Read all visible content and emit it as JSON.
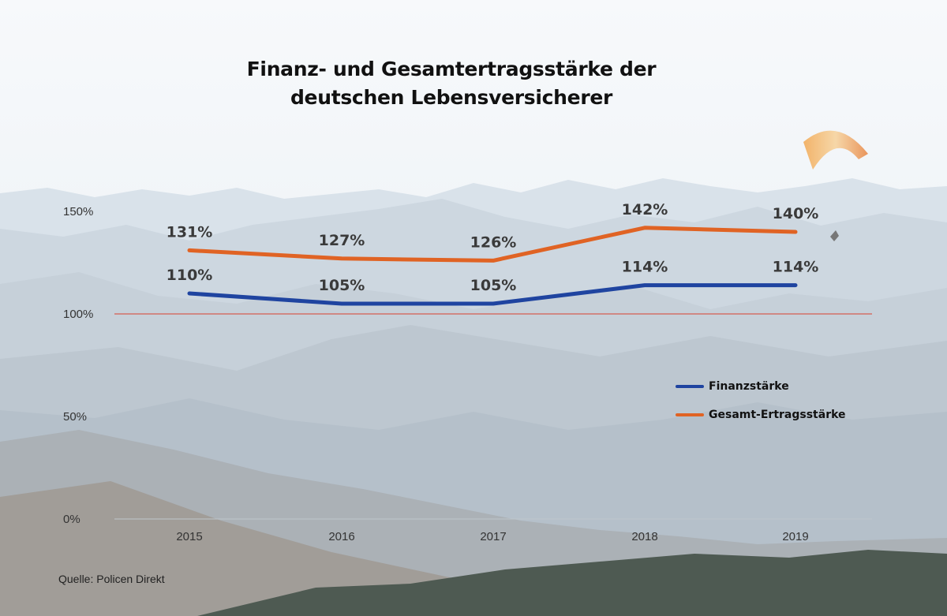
{
  "title_line1": "Finanz- und Gesamtertragsstärke der",
  "title_line2": "deutschen Lebensversicherer",
  "source": "Quelle: Policen Direkt",
  "colors": {
    "finanz": "#1f44a0",
    "gesamt": "#e06324",
    "reference_line": "#d94030"
  },
  "chart_data": {
    "type": "line",
    "x": [
      "2015",
      "2016",
      "2017",
      "2018",
      "2019"
    ],
    "series": [
      {
        "name": "Finanzstärke",
        "values": [
          110,
          105,
          105,
          114,
          114
        ],
        "labels": [
          "110%",
          "105%",
          "105%",
          "114%",
          "114%"
        ]
      },
      {
        "name": "Gesamt-Ertragsstärke",
        "values": [
          131,
          127,
          126,
          142,
          140
        ],
        "labels": [
          "131%",
          "127%",
          "126%",
          "142%",
          "140%"
        ]
      }
    ],
    "y_ticks": [
      0,
      50,
      100,
      150
    ],
    "y_tick_labels": [
      "0%",
      "50%",
      "100%",
      "150%"
    ],
    "ylim": [
      0,
      150
    ],
    "reference_value": 100,
    "legend_position": "right-middle",
    "grid": false
  }
}
